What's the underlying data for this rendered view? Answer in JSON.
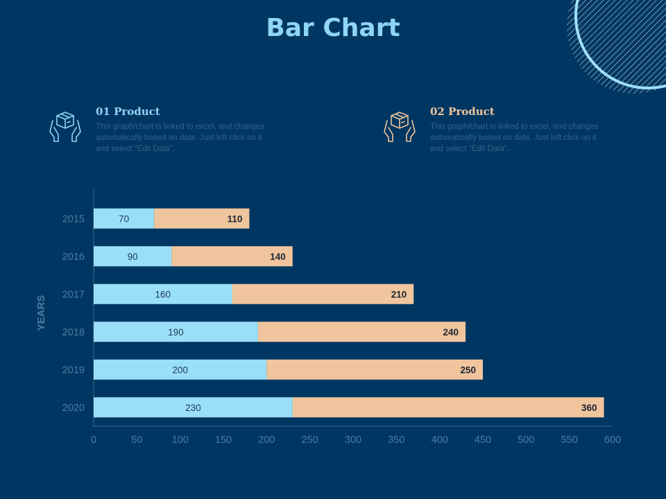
{
  "colors": {
    "background": "#003762",
    "series1": "#99dff8",
    "series2": "#f0c59d",
    "axis": "#3f6a93",
    "tick_text": "#4d7aa3"
  },
  "products": [
    {
      "title": "01 Product",
      "icon": "box-in-hands-icon",
      "description": "This graph/chart is linked to excel, and changes automatically based on data. Just left click on it and select “Edit Data”."
    },
    {
      "title": "02 Product",
      "icon": "box-in-hands-icon",
      "description": "This graph/chart is linked to excel, and changes automatically based on data. Just left click on it and select “Edit Data”."
    }
  ],
  "chart_data": {
    "type": "bar",
    "orientation": "horizontal",
    "stacked": true,
    "title": "Bar Chart",
    "ylabel": "YEARS",
    "xlabel": "",
    "categories": [
      "2015",
      "2016",
      "2017",
      "2018",
      "2019",
      "2020"
    ],
    "series": [
      {
        "name": "01 Product",
        "values": [
          70,
          90,
          160,
          190,
          200,
          230
        ]
      },
      {
        "name": "02 Product",
        "values": [
          110,
          140,
          210,
          240,
          250,
          360
        ]
      }
    ],
    "xlim": [
      0,
      600
    ],
    "xticks": [
      0,
      50,
      100,
      150,
      200,
      250,
      300,
      350,
      400,
      450,
      500,
      550,
      600
    ]
  }
}
